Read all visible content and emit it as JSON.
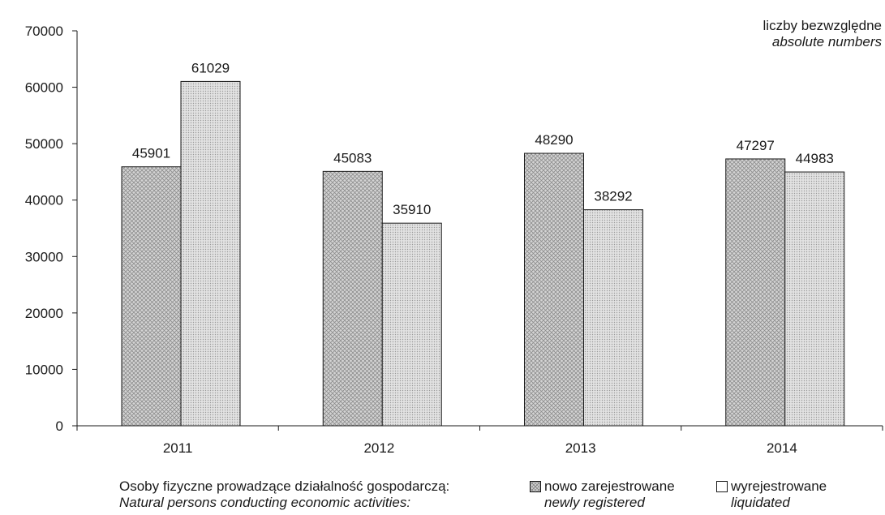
{
  "unit_label": {
    "pl": "liczby bezwzględne",
    "en": "absolute numbers"
  },
  "legend": {
    "caption_pl": "Osoby fizyczne prowadzące działalność gospodarczą:",
    "caption_en": "Natural persons conducting economic activities:",
    "items": [
      {
        "pl": "nowo zarejestrowane",
        "en": "newly registered"
      },
      {
        "pl": "wyrejestrowane",
        "en": "liquidated"
      }
    ]
  },
  "chart_data": {
    "type": "bar",
    "categories": [
      "2011",
      "2012",
      "2013",
      "2014"
    ],
    "series": [
      {
        "name": "nowo zarejestrowane / newly registered",
        "values": [
          45901,
          45083,
          48290,
          47297
        ],
        "pattern": "crosshatch"
      },
      {
        "name": "wyrejestrowane / liquidated",
        "values": [
          61029,
          35910,
          38292,
          44983
        ],
        "pattern": "dots"
      }
    ],
    "y_ticks": [
      0,
      10000,
      20000,
      30000,
      40000,
      50000,
      60000,
      70000
    ],
    "ylim": [
      0,
      70000
    ],
    "grid": false,
    "legend_position": "bottom",
    "colors": {
      "bar_fill": "#d6d6d6",
      "pattern": "#8a8a8a",
      "axis": "#1a1a1a"
    }
  }
}
